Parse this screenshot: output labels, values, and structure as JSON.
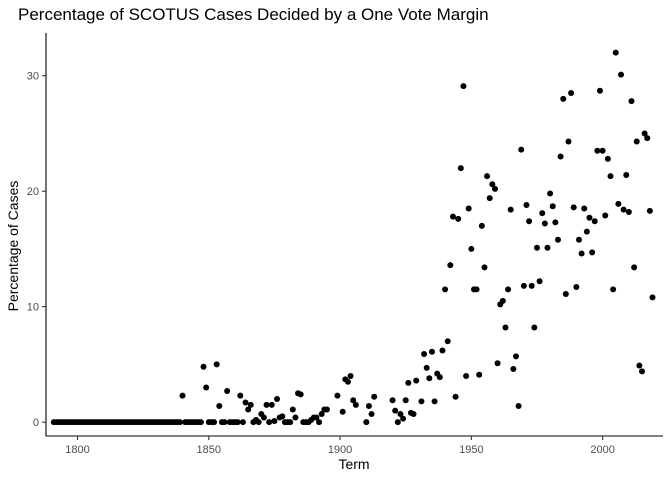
{
  "chart_data": {
    "type": "scatter",
    "title": "Percentage of SCOTUS Cases Decided by a One Vote Margin",
    "xlabel": "Term",
    "ylabel": "Percentage of Cases",
    "xlim": [
      1788,
      2023
    ],
    "ylim": [
      -1.2,
      33.7
    ],
    "xticks": [
      1800,
      1850,
      1900,
      1950,
      2000
    ],
    "yticks": [
      0,
      10,
      20,
      30
    ],
    "grid": false,
    "point_color": "#000000",
    "points": [
      [
        1791,
        0
      ],
      [
        1792,
        0
      ],
      [
        1793,
        0
      ],
      [
        1794,
        0
      ],
      [
        1795,
        0
      ],
      [
        1796,
        0
      ],
      [
        1797,
        0
      ],
      [
        1798,
        0
      ],
      [
        1799,
        0
      ],
      [
        1800,
        0
      ],
      [
        1801,
        0
      ],
      [
        1802,
        0
      ],
      [
        1803,
        0
      ],
      [
        1804,
        0
      ],
      [
        1805,
        0
      ],
      [
        1806,
        0
      ],
      [
        1807,
        0
      ],
      [
        1808,
        0
      ],
      [
        1809,
        0
      ],
      [
        1810,
        0
      ],
      [
        1811,
        0
      ],
      [
        1812,
        0
      ],
      [
        1813,
        0
      ],
      [
        1814,
        0
      ],
      [
        1815,
        0
      ],
      [
        1816,
        0
      ],
      [
        1817,
        0
      ],
      [
        1818,
        0
      ],
      [
        1819,
        0
      ],
      [
        1820,
        0
      ],
      [
        1821,
        0
      ],
      [
        1822,
        0
      ],
      [
        1823,
        0
      ],
      [
        1824,
        0
      ],
      [
        1825,
        0
      ],
      [
        1826,
        0
      ],
      [
        1827,
        0
      ],
      [
        1828,
        0
      ],
      [
        1829,
        0
      ],
      [
        1830,
        0
      ],
      [
        1831,
        0
      ],
      [
        1832,
        0
      ],
      [
        1833,
        0
      ],
      [
        1834,
        0
      ],
      [
        1835,
        0
      ],
      [
        1836,
        0
      ],
      [
        1837,
        0
      ],
      [
        1838,
        0
      ],
      [
        1839,
        0
      ],
      [
        1840,
        2.3
      ],
      [
        1841,
        0
      ],
      [
        1842,
        0
      ],
      [
        1843,
        0
      ],
      [
        1844,
        0
      ],
      [
        1845,
        0
      ],
      [
        1846,
        0
      ],
      [
        1847,
        0
      ],
      [
        1848,
        4.8
      ],
      [
        1849,
        3.0
      ],
      [
        1850,
        0
      ],
      [
        1851,
        0
      ],
      [
        1852,
        0
      ],
      [
        1853,
        5.0
      ],
      [
        1854,
        1.4
      ],
      [
        1855,
        0
      ],
      [
        1856,
        0
      ],
      [
        1857,
        2.7
      ],
      [
        1858,
        0
      ],
      [
        1859,
        0
      ],
      [
        1860,
        0
      ],
      [
        1861,
        0
      ],
      [
        1862,
        2.3
      ],
      [
        1863,
        0
      ],
      [
        1864,
        1.7
      ],
      [
        1865,
        1.1
      ],
      [
        1866,
        1.5
      ],
      [
        1867,
        0
      ],
      [
        1868,
        0.2
      ],
      [
        1869,
        0
      ],
      [
        1870,
        0.7
      ],
      [
        1871,
        0.4
      ],
      [
        1872,
        1.5
      ],
      [
        1873,
        0
      ],
      [
        1874,
        1.5
      ],
      [
        1875,
        0.1
      ],
      [
        1876,
        2.0
      ],
      [
        1877,
        0.4
      ],
      [
        1878,
        0.5
      ],
      [
        1879,
        0
      ],
      [
        1880,
        0
      ],
      [
        1881,
        0
      ],
      [
        1882,
        1.1
      ],
      [
        1883,
        0.4
      ],
      [
        1884,
        2.5
      ],
      [
        1885,
        2.4
      ],
      [
        1886,
        0
      ],
      [
        1887,
        0
      ],
      [
        1888,
        0
      ],
      [
        1889,
        0.2
      ],
      [
        1890,
        0.4
      ],
      [
        1891,
        0.4
      ],
      [
        1892,
        0
      ],
      [
        1893,
        0.7
      ],
      [
        1894,
        1.1
      ],
      [
        1895,
        1.1
      ],
      [
        1899,
        2.3
      ],
      [
        1901,
        0.9
      ],
      [
        1902,
        3.7
      ],
      [
        1903,
        3.5
      ],
      [
        1904,
        4.0
      ],
      [
        1905,
        1.9
      ],
      [
        1906,
        1.5
      ],
      [
        1910,
        0
      ],
      [
        1911,
        1.4
      ],
      [
        1912,
        0.7
      ],
      [
        1913,
        2.2
      ],
      [
        1920,
        1.9
      ],
      [
        1921,
        1.0
      ],
      [
        1922,
        0
      ],
      [
        1923,
        0.7
      ],
      [
        1924,
        0.3
      ],
      [
        1925,
        1.9
      ],
      [
        1926,
        3.4
      ],
      [
        1927,
        0.8
      ],
      [
        1928,
        0.7
      ],
      [
        1929,
        3.6
      ],
      [
        1931,
        1.8
      ],
      [
        1932,
        5.9
      ],
      [
        1933,
        4.7
      ],
      [
        1934,
        3.8
      ],
      [
        1935,
        6.1
      ],
      [
        1936,
        1.8
      ],
      [
        1937,
        4.2
      ],
      [
        1938,
        3.9
      ],
      [
        1939,
        6.2
      ],
      [
        1940,
        11.5
      ],
      [
        1941,
        7.0
      ],
      [
        1942,
        13.6
      ],
      [
        1943,
        17.8
      ],
      [
        1944,
        2.2
      ],
      [
        1945,
        17.6
      ],
      [
        1946,
        22.0
      ],
      [
        1947,
        29.1
      ],
      [
        1948,
        4.0
      ],
      [
        1949,
        18.5
      ],
      [
        1950,
        15.0
      ],
      [
        1951,
        11.5
      ],
      [
        1952,
        11.5
      ],
      [
        1953,
        4.1
      ],
      [
        1954,
        17.0
      ],
      [
        1955,
        13.4
      ],
      [
        1956,
        21.3
      ],
      [
        1957,
        19.4
      ],
      [
        1958,
        20.6
      ],
      [
        1959,
        20.2
      ],
      [
        1960,
        5.1
      ],
      [
        1961,
        10.2
      ],
      [
        1962,
        10.5
      ],
      [
        1963,
        8.2
      ],
      [
        1964,
        11.5
      ],
      [
        1965,
        18.4
      ],
      [
        1966,
        4.6
      ],
      [
        1967,
        5.7
      ],
      [
        1968,
        1.4
      ],
      [
        1969,
        23.6
      ],
      [
        1970,
        11.8
      ],
      [
        1971,
        18.8
      ],
      [
        1972,
        17.4
      ],
      [
        1973,
        11.8
      ],
      [
        1974,
        8.2
      ],
      [
        1975,
        15.1
      ],
      [
        1976,
        12.2
      ],
      [
        1977,
        18.1
      ],
      [
        1978,
        17.2
      ],
      [
        1979,
        15.1
      ],
      [
        1980,
        19.8
      ],
      [
        1981,
        18.7
      ],
      [
        1982,
        17.3
      ],
      [
        1983,
        15.8
      ],
      [
        1984,
        23.0
      ],
      [
        1985,
        28.0
      ],
      [
        1986,
        11.1
      ],
      [
        1987,
        24.3
      ],
      [
        1988,
        28.5
      ],
      [
        1989,
        18.6
      ],
      [
        1990,
        11.7
      ],
      [
        1991,
        15.8
      ],
      [
        1992,
        14.6
      ],
      [
        1993,
        18.5
      ],
      [
        1994,
        16.5
      ],
      [
        1995,
        17.7
      ],
      [
        1996,
        14.7
      ],
      [
        1997,
        17.4
      ],
      [
        1998,
        23.5
      ],
      [
        1999,
        28.7
      ],
      [
        2000,
        23.5
      ],
      [
        2001,
        17.9
      ],
      [
        2002,
        22.8
      ],
      [
        2003,
        21.3
      ],
      [
        2004,
        11.5
      ],
      [
        2005,
        32.0
      ],
      [
        2006,
        18.9
      ],
      [
        2007,
        30.1
      ],
      [
        2008,
        18.4
      ],
      [
        2009,
        21.4
      ],
      [
        2010,
        18.2
      ],
      [
        2011,
        27.8
      ],
      [
        2012,
        13.4
      ],
      [
        2013,
        24.3
      ],
      [
        2014,
        4.9
      ],
      [
        2015,
        4.4
      ],
      [
        2016,
        25.0
      ],
      [
        2017,
        24.6
      ],
      [
        2018,
        18.3
      ],
      [
        2019,
        10.8
      ]
    ]
  }
}
